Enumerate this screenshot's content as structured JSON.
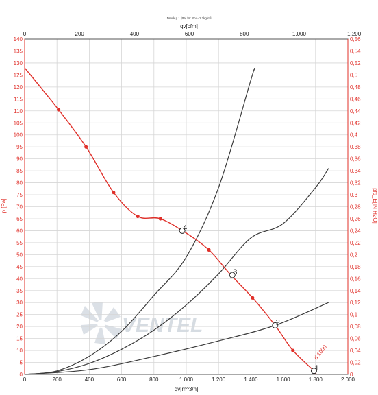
{
  "chart_data": {
    "type": "line",
    "title": "Druck p 1 [Pa] für Rho=1.2kg/m³",
    "xlabel_bottom": "qv[m^3/h]",
    "xlabel_top": "qv[cfm]",
    "ylabel_left": "p [Pa]",
    "ylabel_right": "pfs_E[IN H2O]",
    "xlim": [
      0,
      2000
    ],
    "ylim": [
      0,
      140
    ],
    "xticks": [
      {
        "v": 0,
        "label": "0"
      },
      {
        "v": 200,
        "label": "200"
      },
      {
        "v": 400,
        "label": "400"
      },
      {
        "v": 600,
        "label": "600"
      },
      {
        "v": 800,
        "label": "800"
      },
      {
        "v": 1000,
        "label": "1.000"
      },
      {
        "v": 1200,
        "label": "1.200"
      },
      {
        "v": 1400,
        "label": "1.400"
      },
      {
        "v": 1600,
        "label": "1.600"
      },
      {
        "v": 1800,
        "label": "1.800"
      },
      {
        "v": 2000,
        "label": "2.000"
      }
    ],
    "xticks_top": [
      {
        "v": 0,
        "label": "0"
      },
      {
        "v": 200,
        "label": "200"
      },
      {
        "v": 400,
        "label": "400"
      },
      {
        "v": 600,
        "label": "600"
      },
      {
        "v": 800,
        "label": "800"
      },
      {
        "v": 1000,
        "label": "1.000"
      },
      {
        "v": 1200,
        "label": "1.200"
      }
    ],
    "yticks": [
      0,
      5,
      10,
      15,
      20,
      25,
      30,
      35,
      40,
      45,
      50,
      55,
      60,
      65,
      70,
      75,
      80,
      85,
      90,
      95,
      100,
      105,
      110,
      115,
      120,
      125,
      130,
      135,
      140
    ],
    "yticks_right": [
      "0",
      "0,02",
      "0,04",
      "0,06",
      "0,08",
      "0,1",
      "0,12",
      "0,14",
      "0,16",
      "0,18",
      "0,2",
      "0,22",
      "0,24",
      "0,26",
      "0,28",
      "0,3",
      "0,32",
      "0,34",
      "0,36",
      "0,38",
      "0,4",
      "0,42",
      "0,44",
      "0,46",
      "0,48",
      "0,5",
      "0,52",
      "0,54",
      "0,56"
    ],
    "grid": true,
    "fan_curve": {
      "color": "#e0302a",
      "x": [
        0,
        210,
        380,
        550,
        700,
        840,
        1000,
        1140,
        1270,
        1410,
        1550,
        1660,
        1790,
        1800
      ],
      "y": [
        128,
        110.5,
        95,
        76,
        66,
        65,
        59,
        52,
        42,
        32,
        20.5,
        10,
        1.5,
        0
      ],
      "markers": [
        [
          210,
          110.5
        ],
        [
          380,
          95
        ],
        [
          550,
          76
        ],
        [
          700,
          66
        ],
        [
          840,
          65
        ],
        [
          1140,
          52
        ],
        [
          1410,
          32
        ],
        [
          1660,
          10
        ]
      ]
    },
    "system_curves": [
      {
        "color": "#3a3a3a",
        "x": [
          0,
          200,
          400,
          600,
          800,
          1000,
          1200,
          1400,
          1420
        ],
        "y": [
          0,
          1.5,
          7.6,
          18,
          33,
          49,
          78,
          123,
          127
        ]
      },
      {
        "color": "#3a3a3a",
        "x": [
          0,
          200,
          400,
          600,
          800,
          1000,
          1200,
          1400,
          1600,
          1800,
          1880
        ],
        "y": [
          0,
          1.2,
          4.6,
          10.5,
          18.5,
          29,
          42,
          57,
          63,
          78,
          86
        ]
      },
      {
        "color": "#3a3a3a",
        "x": [
          0,
          400,
          800,
          1200,
          1550,
          1880
        ],
        "y": [
          0,
          2,
          7.5,
          14,
          20.5,
          30
        ]
      }
    ],
    "operating_points": [
      {
        "label": "4",
        "x": 975,
        "y": 60
      },
      {
        "label": "3",
        "x": 1285,
        "y": 41.5
      },
      {
        "label": "2",
        "x": 1550,
        "y": 20.5
      },
      {
        "label": "1",
        "x": 1790,
        "y": 1.5
      }
    ],
    "curve_label": "d 1000"
  },
  "watermark": {
    "text": "VENTEL"
  }
}
